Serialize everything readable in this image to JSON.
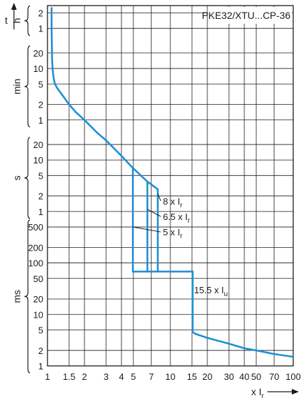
{
  "chart_data": {
    "type": "line",
    "title": "PKE32/XTU...CP-36",
    "x_axis": {
      "scale": "log",
      "range": [
        1,
        100
      ],
      "ticks": [
        {
          "v": 1,
          "label": "1"
        },
        {
          "v": 1.5,
          "label": "1.5"
        },
        {
          "v": 2,
          "label": "2"
        },
        {
          "v": 3,
          "label": "3"
        },
        {
          "v": 4,
          "label": "4"
        },
        {
          "v": 5,
          "label": "5"
        },
        {
          "v": 7,
          "label": "7"
        },
        {
          "v": 10,
          "label": "10"
        },
        {
          "v": 15,
          "label": "15"
        },
        {
          "v": 20,
          "label": "20"
        },
        {
          "v": 30,
          "label": "30"
        },
        {
          "v": 40,
          "label": "40"
        },
        {
          "v": 50,
          "label": "50"
        },
        {
          "v": 70,
          "label": "70"
        },
        {
          "v": 100,
          "label": "100"
        }
      ],
      "label": "x I",
      "label_sub": "r"
    },
    "y_axis": {
      "scale": "log",
      "unit": "seconds",
      "groups": [
        {
          "name": "h",
          "ticks": [
            {
              "v": 3600,
              "label": "1"
            },
            {
              "v": 7200,
              "label": "2"
            }
          ]
        },
        {
          "name": "min",
          "ticks": [
            {
              "v": 60,
              "label": "1"
            },
            {
              "v": 120,
              "label": "2"
            },
            {
              "v": 300,
              "label": "5"
            },
            {
              "v": 600,
              "label": "10"
            },
            {
              "v": 1200,
              "label": "20"
            }
          ]
        },
        {
          "name": "s",
          "ticks": [
            {
              "v": 1,
              "label": "1"
            },
            {
              "v": 2,
              "label": "2"
            },
            {
              "v": 5,
              "label": "5"
            },
            {
              "v": 10,
              "label": "10"
            },
            {
              "v": 20,
              "label": "20"
            }
          ]
        },
        {
          "name": "ms",
          "ticks": [
            {
              "v": 0.001,
              "label": "1"
            },
            {
              "v": 0.002,
              "label": "2"
            },
            {
              "v": 0.005,
              "label": "5"
            },
            {
              "v": 0.01,
              "label": "10"
            },
            {
              "v": 0.02,
              "label": "20"
            },
            {
              "v": 0.05,
              "label": "50"
            },
            {
              "v": 0.1,
              "label": "100"
            },
            {
              "v": 0.2,
              "label": "200"
            },
            {
              "v": 0.5,
              "label": "500"
            }
          ]
        }
      ]
    },
    "grid": true,
    "line_color": "#1f8fd6",
    "series": [
      {
        "name": "",
        "points": [
          [
            1.08,
            9000
          ],
          [
            1.08,
            3600
          ],
          [
            1.09,
            900
          ],
          [
            1.1,
            600
          ],
          [
            1.12,
            400
          ],
          [
            1.15,
            300
          ],
          [
            1.2,
            250
          ],
          [
            1.35,
            170
          ],
          [
            1.5,
            120
          ],
          [
            1.7,
            85
          ],
          [
            2,
            60
          ],
          [
            2.5,
            35
          ],
          [
            3,
            24
          ],
          [
            4,
            12
          ],
          [
            4.95,
            7
          ],
          [
            6.5,
            3.8
          ],
          [
            7.9,
            2.7
          ]
        ]
      },
      {
        "name": "",
        "points": [
          [
            4.95,
            7
          ],
          [
            4.95,
            0.068
          ]
        ]
      },
      {
        "name": "",
        "points": [
          [
            6.5,
            3.8
          ],
          [
            6.5,
            0.068
          ]
        ]
      },
      {
        "name": "",
        "points": [
          [
            7.9,
            2.7
          ],
          [
            7.9,
            0.068
          ]
        ]
      },
      {
        "name": "",
        "points": [
          [
            4.95,
            0.068
          ],
          [
            15.2,
            0.068
          ]
        ]
      },
      {
        "name": "",
        "points": [
          [
            15.2,
            0.068
          ],
          [
            15.2,
            0.0045
          ],
          [
            16,
            0.0042
          ],
          [
            20,
            0.0035
          ],
          [
            30,
            0.0027
          ],
          [
            40,
            0.0022
          ],
          [
            50,
            0.002
          ],
          [
            70,
            0.0017
          ],
          [
            100,
            0.0015
          ]
        ]
      }
    ],
    "annotations": [
      {
        "text": "8 x I",
        "sub": "r",
        "at": [
          7.9,
          2.2
        ],
        "label_at": [
          8.7,
          1.6
        ]
      },
      {
        "text": "6.5 x I",
        "sub": "r",
        "at": [
          6.5,
          1.1
        ],
        "label_at": [
          8.7,
          0.8
        ]
      },
      {
        "text": "5 x I",
        "sub": "r",
        "at": [
          4.95,
          0.5
        ],
        "label_at": [
          8.7,
          0.4
        ]
      },
      {
        "text": "15.5 x I",
        "sub": "u",
        "at": null,
        "label_at": [
          15.6,
          0.03
        ]
      }
    ]
  }
}
